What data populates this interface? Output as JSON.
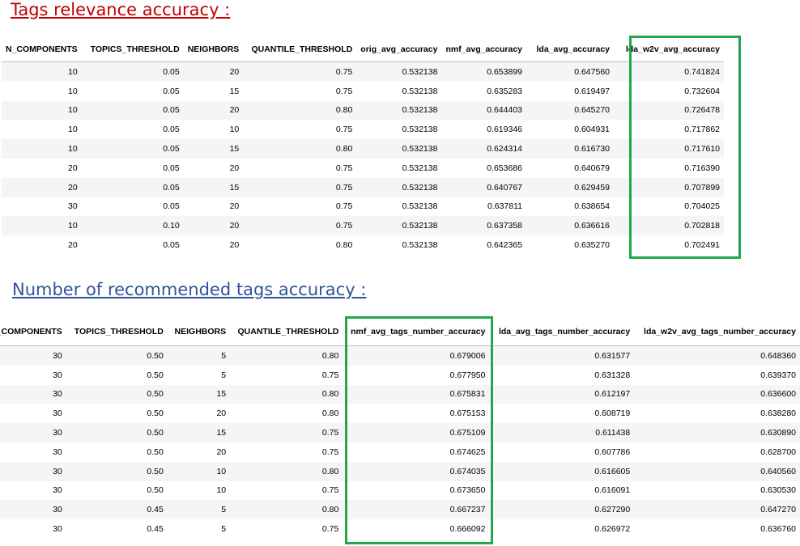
{
  "title1": "Tags relevance accuracy :",
  "title2": "Number of recommended tags accuracy :",
  "table1": {
    "headers": [
      "N_COMPONENTS",
      "TOPICS_THRESHOLD",
      "NEIGHBORS",
      "QUANTILE_THRESHOLD",
      "orig_avg_accuracy",
      "nmf_avg_accuracy",
      "lda_avg_accuracy",
      "lda_w2v_avg_accuracy"
    ],
    "rows": [
      [
        "10",
        "0.05",
        "20",
        "0.75",
        "0.532138",
        "0.653899",
        "0.647560",
        "0.741824"
      ],
      [
        "10",
        "0.05",
        "15",
        "0.75",
        "0.532138",
        "0.635283",
        "0.619497",
        "0.732604"
      ],
      [
        "10",
        "0.05",
        "20",
        "0.80",
        "0.532138",
        "0.644403",
        "0.645270",
        "0.726478"
      ],
      [
        "10",
        "0.05",
        "10",
        "0.75",
        "0.532138",
        "0.619346",
        "0.604931",
        "0.717862"
      ],
      [
        "10",
        "0.05",
        "15",
        "0.80",
        "0.532138",
        "0.624314",
        "0.616730",
        "0.717610"
      ],
      [
        "20",
        "0.05",
        "20",
        "0.75",
        "0.532138",
        "0.653686",
        "0.640679",
        "0.716390"
      ],
      [
        "20",
        "0.05",
        "15",
        "0.75",
        "0.532138",
        "0.640767",
        "0.629459",
        "0.707899"
      ],
      [
        "30",
        "0.05",
        "20",
        "0.75",
        "0.532138",
        "0.637811",
        "0.638654",
        "0.704025"
      ],
      [
        "10",
        "0.10",
        "20",
        "0.75",
        "0.532138",
        "0.637358",
        "0.636616",
        "0.702818"
      ],
      [
        "20",
        "0.05",
        "20",
        "0.80",
        "0.532138",
        "0.642365",
        "0.635270",
        "0.702491"
      ]
    ]
  },
  "table2": {
    "headers": [
      "N_COMPONENTS",
      "TOPICS_THRESHOLD",
      "NEIGHBORS",
      "QUANTILE_THRESHOLD",
      "nmf_avg_tags_number_accuracy",
      "lda_avg_tags_number_accuracy",
      "lda_w2v_avg_tags_number_accuracy"
    ],
    "rows": [
      [
        "30",
        "0.50",
        "5",
        "0.80",
        "0.679006",
        "0.631577",
        "0.648360"
      ],
      [
        "30",
        "0.50",
        "5",
        "0.75",
        "0.677950",
        "0.631328",
        "0.639370"
      ],
      [
        "30",
        "0.50",
        "15",
        "0.80",
        "0.675831",
        "0.612197",
        "0.636600"
      ],
      [
        "30",
        "0.50",
        "20",
        "0.80",
        "0.675153",
        "0.608719",
        "0.638280"
      ],
      [
        "30",
        "0.50",
        "15",
        "0.75",
        "0.675109",
        "0.611438",
        "0.630890"
      ],
      [
        "30",
        "0.50",
        "20",
        "0.75",
        "0.674625",
        "0.607786",
        "0.628700"
      ],
      [
        "30",
        "0.50",
        "10",
        "0.80",
        "0.674035",
        "0.616605",
        "0.640560"
      ],
      [
        "30",
        "0.50",
        "10",
        "0.75",
        "0.673650",
        "0.616091",
        "0.630530"
      ],
      [
        "30",
        "0.45",
        "5",
        "0.80",
        "0.667237",
        "0.627290",
        "0.647270"
      ],
      [
        "30",
        "0.45",
        "5",
        "0.75",
        "0.666092",
        "0.626972",
        "0.636760"
      ]
    ]
  },
  "highlight_color": "#22a84a"
}
